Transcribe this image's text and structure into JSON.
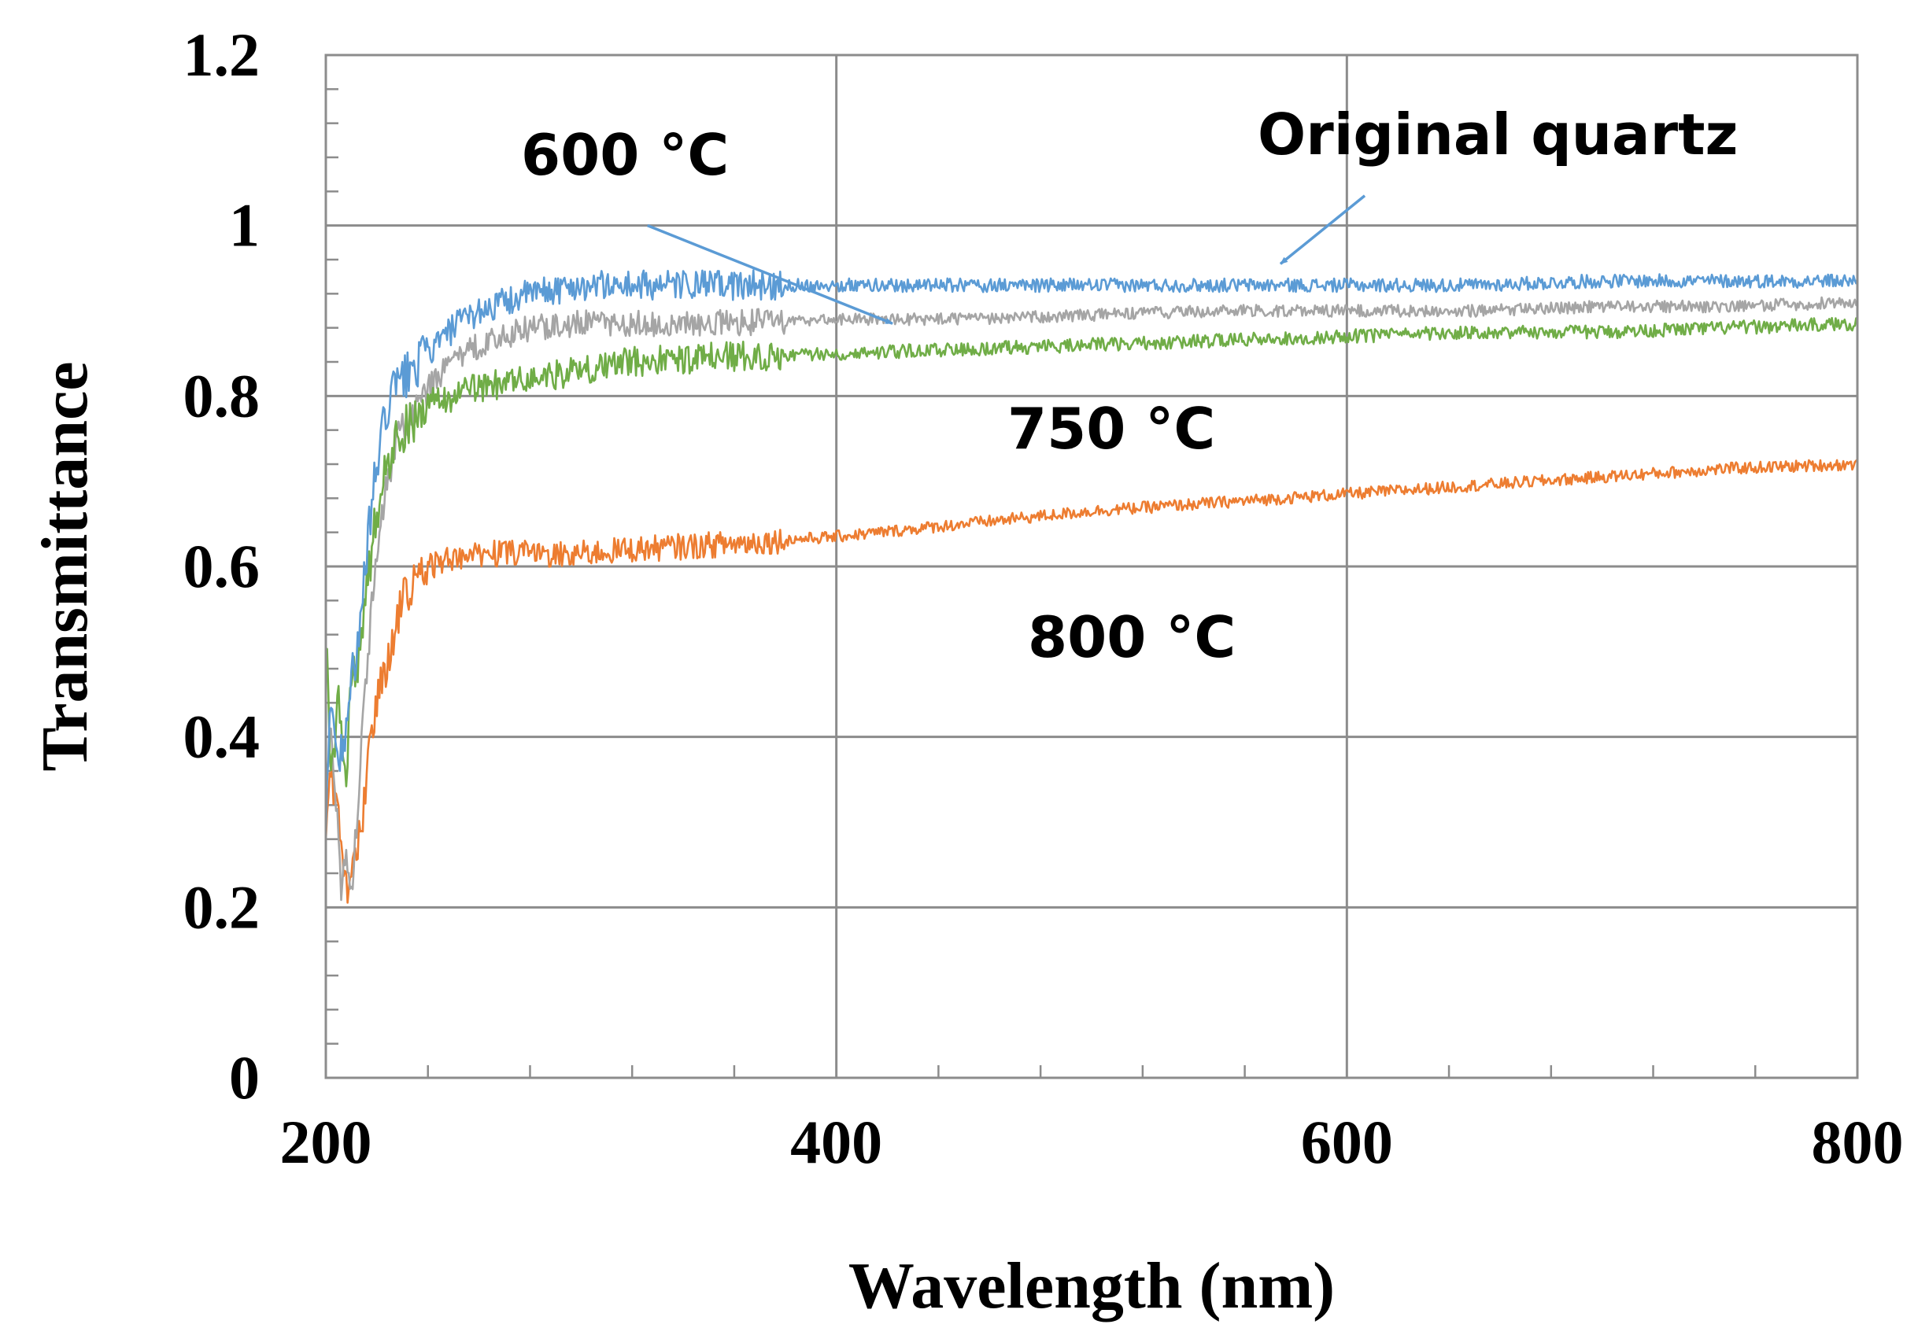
{
  "chart_data": {
    "type": "line",
    "xlabel": "Wavelength (nm)",
    "ylabel": "Transmittance",
    "xlim": [
      200,
      800
    ],
    "ylim": [
      0,
      1.2
    ],
    "xticks": [
      200,
      400,
      600,
      800
    ],
    "xtick_labels": [
      "200",
      "400",
      "600",
      "800"
    ],
    "yticks": [
      0,
      0.2,
      0.4,
      0.6,
      0.8,
      1,
      1.2
    ],
    "ytick_labels": [
      "0",
      "0.2",
      "0.4",
      "0.6",
      "0.8",
      "1",
      "1.2"
    ],
    "grid": true,
    "colors": {
      "original": "#5b9bd5",
      "c600": "#a5a5a5",
      "c750": "#70ad47",
      "c800": "#ed7d31",
      "arrow": "#5b9bd5"
    },
    "series": [
      {
        "name": "Original quartz",
        "color": "#5b9bd5",
        "noise": 0.008,
        "x": [
          200,
          202,
          205,
          208,
          210,
          213,
          216,
          220,
          225,
          230,
          240,
          250,
          260,
          270,
          280,
          290,
          300,
          320,
          340,
          360,
          380,
          400,
          450,
          500,
          550,
          600,
          650,
          700,
          750,
          800
        ],
        "y": [
          0.28,
          0.46,
          0.36,
          0.42,
          0.48,
          0.5,
          0.62,
          0.72,
          0.8,
          0.82,
          0.85,
          0.88,
          0.9,
          0.91,
          0.92,
          0.925,
          0.93,
          0.93,
          0.93,
          0.93,
          0.93,
          0.93,
          0.93,
          0.93,
          0.93,
          0.93,
          0.93,
          0.935,
          0.935,
          0.935
        ]
      },
      {
        "name": "600 °C",
        "color": "#a5a5a5",
        "noise": 0.007,
        "x": [
          200,
          202,
          205,
          206,
          208,
          210,
          212,
          216,
          220,
          225,
          230,
          240,
          250,
          260,
          270,
          280,
          300,
          320,
          350,
          400,
          450,
          500,
          550,
          600,
          650,
          700,
          750,
          800
        ],
        "y": [
          0.36,
          0.4,
          0.3,
          0.22,
          0.27,
          0.22,
          0.3,
          0.48,
          0.62,
          0.72,
          0.76,
          0.81,
          0.84,
          0.86,
          0.87,
          0.88,
          0.885,
          0.885,
          0.885,
          0.89,
          0.89,
          0.895,
          0.9,
          0.9,
          0.9,
          0.905,
          0.905,
          0.91
        ]
      },
      {
        "name": "750 °C",
        "color": "#70ad47",
        "noise": 0.008,
        "x": [
          200,
          202,
          205,
          208,
          210,
          213,
          216,
          220,
          225,
          230,
          240,
          250,
          260,
          280,
          300,
          320,
          350,
          400,
          450,
          500,
          550,
          600,
          650,
          700,
          750,
          800
        ],
        "y": [
          0.52,
          0.36,
          0.44,
          0.37,
          0.45,
          0.5,
          0.58,
          0.66,
          0.73,
          0.76,
          0.79,
          0.8,
          0.81,
          0.82,
          0.83,
          0.84,
          0.845,
          0.85,
          0.855,
          0.86,
          0.865,
          0.87,
          0.875,
          0.875,
          0.88,
          0.885
        ]
      },
      {
        "name": "800 °C",
        "color": "#ed7d31",
        "noise": 0.007,
        "x": [
          200,
          202,
          205,
          207,
          209,
          211,
          214,
          217,
          220,
          225,
          230,
          235,
          240,
          250,
          260,
          280,
          300,
          320,
          350,
          400,
          450,
          500,
          550,
          600,
          650,
          700,
          750,
          800
        ],
        "y": [
          0.3,
          0.36,
          0.3,
          0.25,
          0.22,
          0.24,
          0.3,
          0.38,
          0.44,
          0.5,
          0.56,
          0.58,
          0.6,
          0.61,
          0.615,
          0.615,
          0.615,
          0.62,
          0.625,
          0.635,
          0.65,
          0.665,
          0.675,
          0.685,
          0.695,
          0.705,
          0.715,
          0.72
        ]
      }
    ],
    "annotations": [
      {
        "text": "Original quartz",
        "target_x": 574,
        "target_y": 0.955,
        "from_x": 607,
        "from_y": 1.035
      },
      {
        "text": "600 °C",
        "target_x": 422,
        "target_y": 0.885,
        "from_x": 326,
        "from_y": 1.0
      },
      {
        "text": "750 °C"
      },
      {
        "text": "800 °C"
      }
    ]
  }
}
